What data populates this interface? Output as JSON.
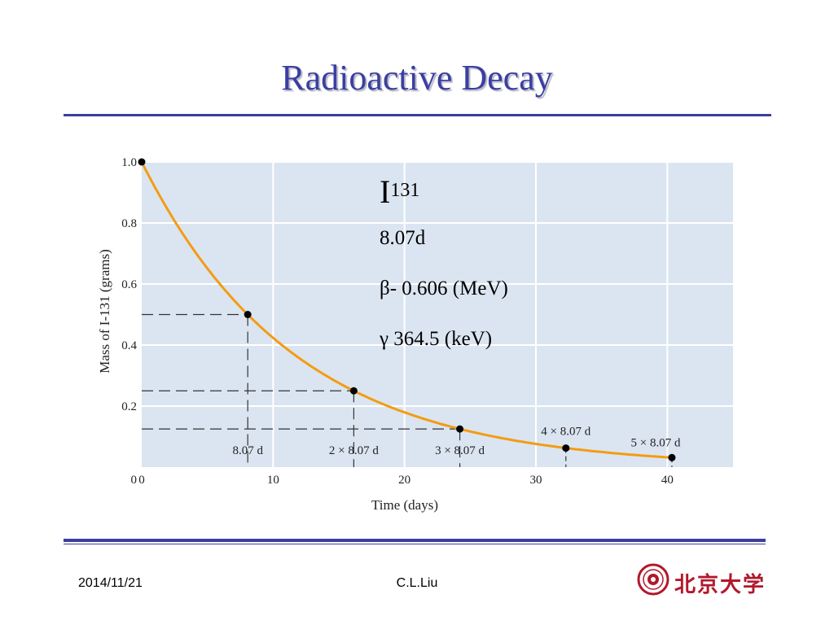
{
  "slide": {
    "title": "Radioactive Decay",
    "footer_date": "2014/11/21",
    "footer_author": "C.L.Liu",
    "logo_text": "北京大学"
  },
  "isotope": {
    "symbol": "I",
    "mass_number": "131",
    "half_life": "8.07d",
    "beta_line": "β- 0.606 (MeV)",
    "gamma_line": "γ 364.5 (keV)"
  },
  "colors": {
    "title": "#3a3fa0",
    "rule": "#3a3fa0",
    "plot_bg": "#dbe5f1",
    "grid": "#ffffff",
    "curve": "#f39c12",
    "points": "#000000",
    "logo": "#b2182b"
  },
  "chart_data": {
    "type": "line",
    "title": "",
    "xlabel": "Time (days)",
    "ylabel": "Mass of I-131 (grams)",
    "xlim": [
      0,
      45
    ],
    "ylim": [
      0,
      1.0
    ],
    "xticks": [
      0,
      10,
      20,
      30,
      40
    ],
    "xtick_labels": [
      "0",
      "10",
      "20",
      "30",
      "40"
    ],
    "yticks": [
      0,
      0.2,
      0.4,
      0.6,
      0.8,
      1.0
    ],
    "ytick_labels": [
      "0",
      "0.2",
      "0.4",
      "0.6",
      "0.8",
      "1.0"
    ],
    "grid": true,
    "half_life_days": 8.07,
    "points": [
      {
        "x": 0,
        "y": 1.0,
        "label": ""
      },
      {
        "x": 8.07,
        "y": 0.5,
        "label": "8.07 d"
      },
      {
        "x": 16.14,
        "y": 0.25,
        "label": "2 × 8.07 d"
      },
      {
        "x": 24.21,
        "y": 0.125,
        "label": "3 × 8.07 d"
      },
      {
        "x": 32.28,
        "y": 0.0625,
        "label": "4 × 8.07 d"
      },
      {
        "x": 40.35,
        "y": 0.03125,
        "label": "5 × 8.07 d"
      }
    ]
  }
}
